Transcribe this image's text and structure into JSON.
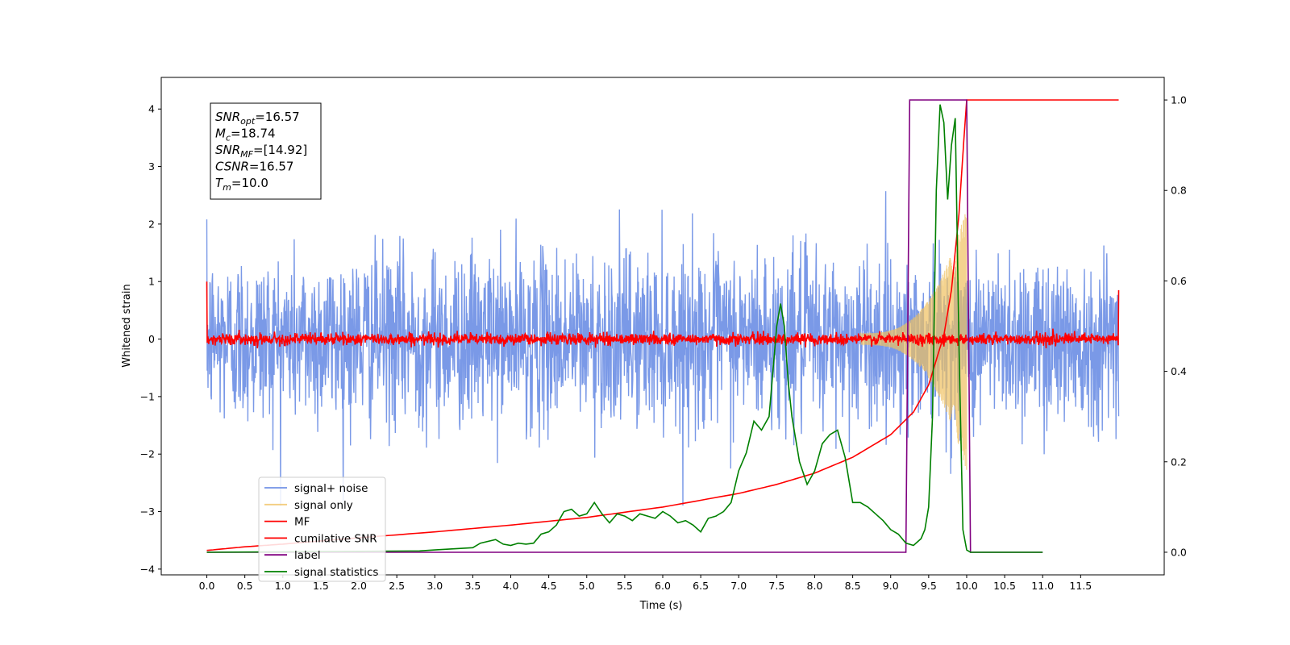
{
  "chart_data": {
    "type": "line",
    "xlabel": "Time (s)",
    "ylabel": "Whitened strain",
    "xlim": [
      -0.6,
      12.6
    ],
    "ylim_left": [
      -4.1,
      4.55
    ],
    "ylim_right": [
      -0.05,
      1.05
    ],
    "x_ticks": [
      "0.0",
      "0.5",
      "1.0",
      "1.5",
      "2.0",
      "2.5",
      "3.0",
      "3.5",
      "4.0",
      "4.5",
      "5.0",
      "5.5",
      "6.0",
      "6.5",
      "7.0",
      "7.5",
      "8.0",
      "8.5",
      "9.0",
      "9.5",
      "10.0",
      "10.5",
      "11.0",
      "11.5"
    ],
    "y_ticks_left": [
      "4",
      "3",
      "2",
      "1",
      "0",
      "−1",
      "−2",
      "−3",
      "−4"
    ],
    "y_ticks_right": [
      "1.0",
      "0.8",
      "0.6",
      "0.4",
      "0.2",
      "0.0"
    ],
    "grid": false,
    "legend_position": "lower-left",
    "annotation": {
      "lines": [
        {
          "sym": "SNR",
          "sub": "opt",
          "val": "=16.57"
        },
        {
          "sym": "M",
          "sub": "c",
          "val": "=18.74"
        },
        {
          "sym": "SNR",
          "sub": "MF",
          "val": "=[14.92]"
        },
        {
          "sym": "CSNR",
          "sub": "",
          "val": "=16.57"
        },
        {
          "sym": "T",
          "sub": "m",
          "val": "=10.0"
        }
      ]
    },
    "series": [
      {
        "name": "signal+ noise",
        "color": "#7393e6",
        "axis": "left",
        "envelope_sigma": 0.75,
        "x_range": [
          0,
          12.0
        ]
      },
      {
        "name": "signal only",
        "color": "#f0c060",
        "axis": "left",
        "x_range": [
          8.6,
          10.0
        ],
        "peak_amplitude": 2.2
      },
      {
        "name": "MF",
        "color": "#ff0000",
        "axis": "left",
        "noise_sigma": 0.05,
        "x_range": [
          0,
          12.0
        ],
        "end_values": [
          1.0,
          0.85
        ]
      },
      {
        "name": "cumilative SNR",
        "color": "#ff0000",
        "axis": "right",
        "x": [
          0.0,
          0.5,
          1.0,
          2.0,
          3.0,
          4.0,
          5.0,
          6.0,
          7.0,
          7.5,
          8.0,
          8.5,
          9.0,
          9.3,
          9.5,
          9.7,
          9.8,
          9.9,
          9.95,
          10.0,
          12.0
        ],
        "y": [
          0.004,
          0.012,
          0.018,
          0.032,
          0.045,
          0.06,
          0.077,
          0.1,
          0.13,
          0.15,
          0.175,
          0.21,
          0.26,
          0.31,
          0.37,
          0.48,
          0.58,
          0.75,
          0.88,
          1.0,
          1.0
        ]
      },
      {
        "name": "label",
        "color": "#800080",
        "axis": "right",
        "x": [
          0.0,
          9.2,
          9.25,
          10.0,
          10.05,
          11.0
        ],
        "y": [
          0.0,
          0.0,
          1.0,
          1.0,
          0.0,
          0.0
        ]
      },
      {
        "name": "signal statistics",
        "color": "#008000",
        "axis": "right",
        "x": [
          0.0,
          1.0,
          2.0,
          2.8,
          3.0,
          3.5,
          3.6,
          3.8,
          3.9,
          4.0,
          4.1,
          4.2,
          4.3,
          4.4,
          4.5,
          4.6,
          4.7,
          4.8,
          4.9,
          5.0,
          5.1,
          5.2,
          5.3,
          5.4,
          5.5,
          5.6,
          5.7,
          5.8,
          5.9,
          6.0,
          6.1,
          6.2,
          6.3,
          6.4,
          6.5,
          6.6,
          6.7,
          6.8,
          6.9,
          7.0,
          7.1,
          7.2,
          7.3,
          7.4,
          7.5,
          7.55,
          7.6,
          7.65,
          7.7,
          7.8,
          7.9,
          8.0,
          8.1,
          8.2,
          8.3,
          8.4,
          8.5,
          8.6,
          8.7,
          8.8,
          8.9,
          9.0,
          9.1,
          9.2,
          9.3,
          9.4,
          9.45,
          9.5,
          9.55,
          9.6,
          9.65,
          9.7,
          9.75,
          9.8,
          9.85,
          9.9,
          9.95,
          10.0,
          10.05,
          11.0
        ],
        "y": [
          0.0,
          0.001,
          0.002,
          0.003,
          0.005,
          0.01,
          0.02,
          0.028,
          0.018,
          0.015,
          0.02,
          0.018,
          0.02,
          0.04,
          0.045,
          0.06,
          0.09,
          0.095,
          0.08,
          0.085,
          0.11,
          0.085,
          0.065,
          0.085,
          0.08,
          0.07,
          0.085,
          0.08,
          0.075,
          0.09,
          0.08,
          0.065,
          0.07,
          0.06,
          0.045,
          0.075,
          0.08,
          0.09,
          0.11,
          0.18,
          0.22,
          0.29,
          0.27,
          0.3,
          0.5,
          0.55,
          0.5,
          0.38,
          0.3,
          0.2,
          0.15,
          0.18,
          0.24,
          0.26,
          0.27,
          0.21,
          0.11,
          0.11,
          0.1,
          0.085,
          0.07,
          0.05,
          0.04,
          0.02,
          0.015,
          0.03,
          0.05,
          0.1,
          0.3,
          0.8,
          0.99,
          0.95,
          0.78,
          0.9,
          0.96,
          0.45,
          0.05,
          0.005,
          0.0,
          0.0
        ]
      }
    ]
  }
}
